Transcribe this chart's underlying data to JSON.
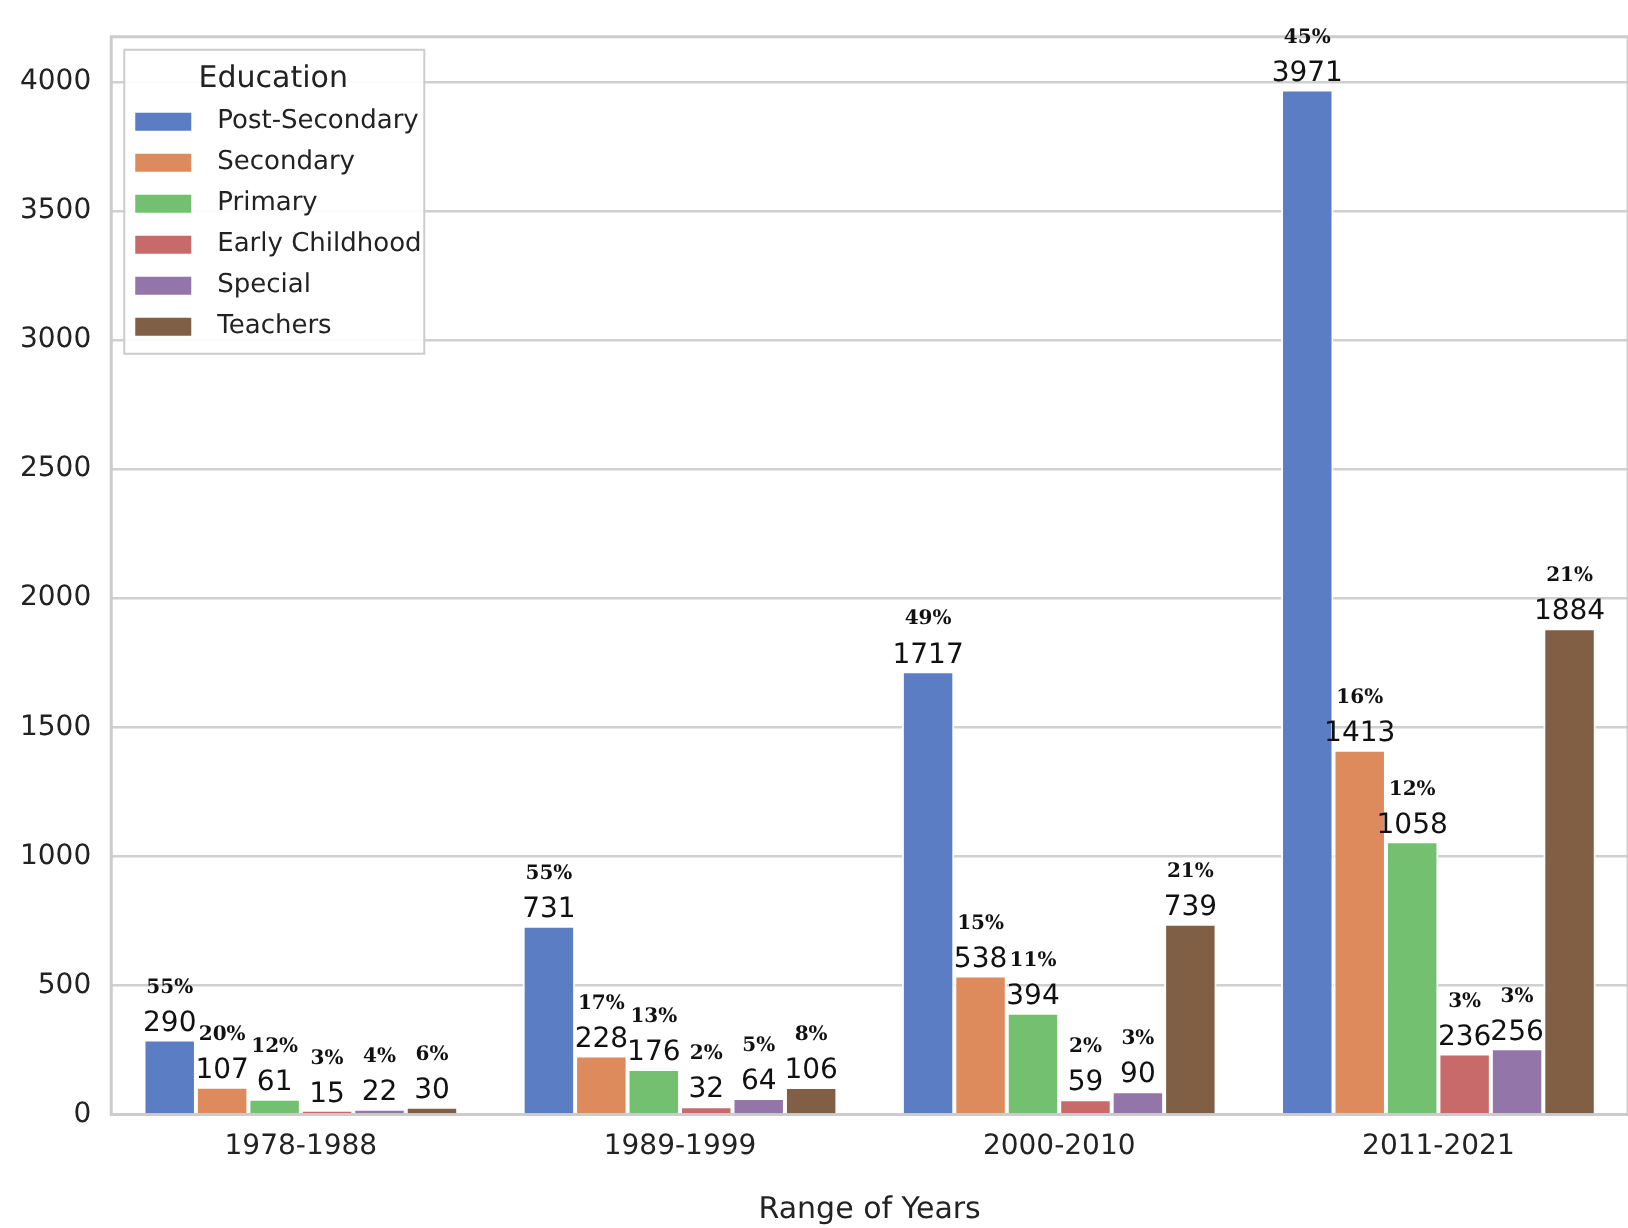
{
  "chart_data": {
    "type": "bar",
    "xlabel": "Range of Years",
    "legend_title": "Education",
    "legend": "top left",
    "grid": "y",
    "data_labels": true,
    "categories": [
      "1978-1988",
      "1989-1999",
      "2000-2010",
      "2011-2021"
    ],
    "ylim": [
      0,
      4175
    ],
    "yticks": [
      0,
      500,
      1000,
      1500,
      2000,
      2500,
      3000,
      3500,
      4000
    ],
    "series": [
      {
        "name": "Post-Secondary",
        "color": "#5a7dc4",
        "values": [
          290,
          731,
          1717,
          3971
        ]
      },
      {
        "name": "Secondary",
        "color": "#dd8a5c",
        "values": [
          107,
          228,
          538,
          1413
        ]
      },
      {
        "name": "Primary",
        "color": "#72c070",
        "values": [
          61,
          176,
          394,
          1058
        ]
      },
      {
        "name": "Early Childhood",
        "color": "#c96a6a",
        "values": [
          15,
          32,
          59,
          236
        ]
      },
      {
        "name": "Special",
        "color": "#9475aa",
        "values": [
          22,
          64,
          90,
          256
        ]
      },
      {
        "name": "Teachers",
        "color": "#805f44",
        "values": [
          30,
          106,
          739,
          1884
        ]
      }
    ],
    "annotations": [
      "55%",
      "20%",
      "12%",
      "3%",
      "4%",
      "6%",
      "55%",
      "17%",
      "13%",
      "2%",
      "5%",
      "8%",
      "49%",
      "15%",
      "11%",
      "2%",
      "3%",
      "21%",
      "45%",
      "16%",
      "12%",
      "3%",
      "3%",
      "21%"
    ]
  }
}
